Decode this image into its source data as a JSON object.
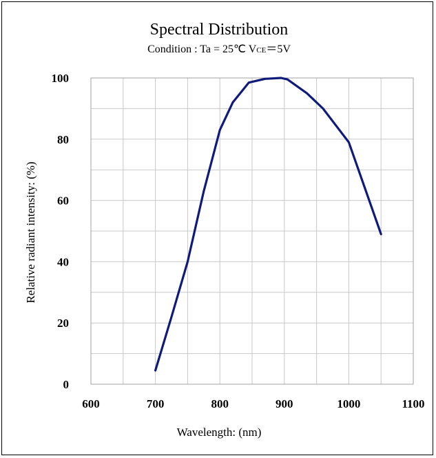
{
  "chart_data": {
    "type": "line",
    "title": "Spectral Distribution",
    "subtitle": {
      "prefix": "Condition : Ta = 25℃   V",
      "subscript": "CE",
      "suffix": "＝5V"
    },
    "xlabel": "Wavelength: (nm)",
    "ylabel": "Relative radiant intensity: (%)",
    "xlim": [
      600,
      1100
    ],
    "ylim": [
      0,
      100
    ],
    "x_ticks": [
      600,
      700,
      800,
      900,
      1000,
      1100
    ],
    "y_ticks": [
      0,
      20,
      40,
      60,
      80,
      100
    ],
    "grid": true,
    "series": [
      {
        "color": "#0f1a7a",
        "x": [
          700,
          725,
          750,
          775,
          800,
          820,
          845,
          870,
          895,
          905,
          935,
          960,
          980,
          1000,
          1025,
          1050
        ],
        "y": [
          4.5,
          22,
          40,
          63,
          83,
          92,
          98.5,
          99.7,
          100,
          99.5,
          95,
          90,
          84.5,
          79,
          64,
          49
        ]
      }
    ]
  }
}
